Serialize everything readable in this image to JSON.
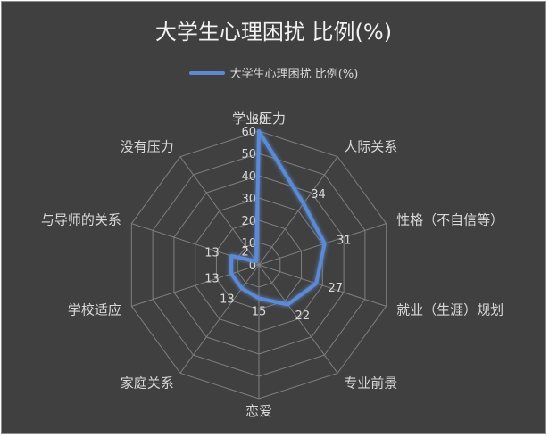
{
  "chart_data": {
    "type": "radar",
    "title": "大学生心理困扰 比例(%)",
    "legend": {
      "position": "top",
      "entries": [
        "大学生心理困扰 比例(%)"
      ]
    },
    "categories": [
      "学业压力",
      "人际关系",
      "性格（不自信等）",
      "就业（生涯）规划",
      "专业前景",
      "恋爱",
      "家庭关系",
      "学校适应",
      "与导师的关系",
      "没有压力"
    ],
    "series": [
      {
        "name": "大学生心理困扰 比例(%)",
        "values": [
          60,
          34,
          31,
          27,
          22,
          15,
          13,
          13,
          13,
          2
        ],
        "color": "#5b8ad4"
      }
    ],
    "data_labels": [
      "60",
      "34",
      "31",
      "27",
      "22",
      "15",
      "13",
      "13",
      "13",
      "2"
    ],
    "r_ticks": [
      "0",
      "10",
      "20",
      "30",
      "40",
      "50",
      "60"
    ],
    "ylim": [
      0,
      60
    ],
    "grid": true,
    "background": "#404040",
    "grid_color": "#7f7f7f"
  }
}
